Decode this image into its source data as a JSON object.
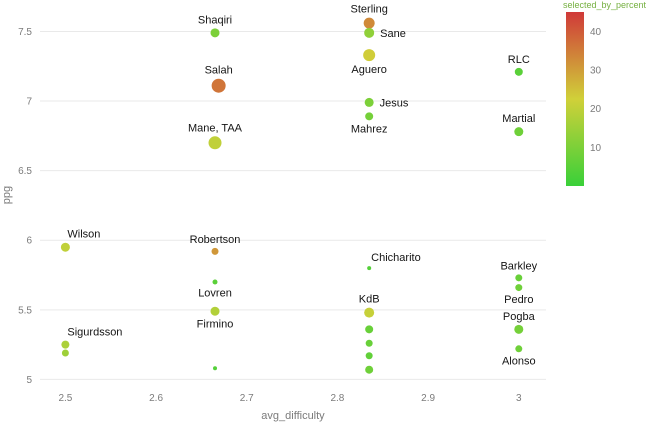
{
  "chart_data": {
    "type": "scatter",
    "title": "",
    "xlabel": "avg_difficulty",
    "ylabel": "ppg",
    "xlim": [
      2.472,
      3.03
    ],
    "ylim": [
      4.96,
      7.69
    ],
    "x_tick_values": [
      2.5,
      2.6,
      2.7,
      2.8,
      2.9,
      3.0
    ],
    "x_ticks": [
      "2.5",
      "2.6",
      "2.7",
      "2.8",
      "2.9",
      "3"
    ],
    "y_tick_values": [
      5,
      5.5,
      6,
      6.5,
      7,
      7.5
    ],
    "y_ticks": [
      "5",
      "5.5",
      "6",
      "6.5",
      "7",
      "7.5"
    ],
    "grid": "horizontal",
    "grid_color": "#e9e9e9",
    "label_color": "#141414",
    "tick_color": "#7b7b7b",
    "colorbar": {
      "title": "selected_by_percent",
      "title_color": "#76b041",
      "min": 0,
      "max": 45,
      "tick_values": [
        40,
        30,
        20,
        10
      ],
      "tick_labels": [
        "40",
        "30",
        "20",
        "10"
      ],
      "low_color_hint": "#34cc34",
      "high_color_hint": "#d42b2b"
    },
    "points": [
      {
        "label": "Shaqiri",
        "x": 2.665,
        "y": 7.49,
        "v": 10,
        "r": 4.5,
        "label_pos": "above"
      },
      {
        "label": "Sterling",
        "x": 2.835,
        "y": 7.56,
        "v": 33,
        "r": 5.5,
        "label_pos": "above"
      },
      {
        "label": "Sane",
        "x": 2.835,
        "y": 7.49,
        "v": 13,
        "r": 5,
        "label_pos": "right"
      },
      {
        "label": "Aguero",
        "x": 2.835,
        "y": 7.33,
        "v": 23,
        "r": 6,
        "label_pos": "below"
      },
      {
        "label": "RLC",
        "x": 3.0,
        "y": 7.21,
        "v": 5,
        "r": 4,
        "label_pos": "above"
      },
      {
        "label": "Salah",
        "x": 2.669,
        "y": 7.11,
        "v": 36,
        "r": 7,
        "label_pos": "above"
      },
      {
        "label": "Jesus",
        "x": 2.835,
        "y": 6.99,
        "v": 10,
        "r": 4.5,
        "label_pos": "right"
      },
      {
        "label": "Mahrez",
        "x": 2.835,
        "y": 6.89,
        "v": 9,
        "r": 4,
        "label_pos": "below"
      },
      {
        "label": "Martial",
        "x": 3.0,
        "y": 6.78,
        "v": 8,
        "r": 4.5,
        "label_pos": "above"
      },
      {
        "label": "Mane, TAA",
        "x": 2.665,
        "y": 6.7,
        "v": 20,
        "r": 6.5,
        "label_pos": "above"
      },
      {
        "label": "Wilson",
        "x": 2.5,
        "y": 5.95,
        "v": 20,
        "r": 4.5,
        "label_pos": "above-right"
      },
      {
        "label": "Robertson",
        "x": 2.665,
        "y": 5.92,
        "v": 31,
        "r": 3.5,
        "label_pos": "above"
      },
      {
        "label": "Chicharito",
        "x": 2.835,
        "y": 5.8,
        "v": 4,
        "r": 2,
        "label_pos": "above-right"
      },
      {
        "label": "Barkley",
        "x": 3.0,
        "y": 5.73,
        "v": 7,
        "r": 3.5,
        "label_pos": "above"
      },
      {
        "label": "Lovren",
        "x": 2.665,
        "y": 5.7,
        "v": 5,
        "r": 2.5,
        "label_pos": "below"
      },
      {
        "label": "Pedro",
        "x": 3.0,
        "y": 5.66,
        "v": 8,
        "r": 3.5,
        "label_pos": "below"
      },
      {
        "label": "KdB",
        "x": 2.835,
        "y": 5.48,
        "v": 21,
        "r": 5,
        "label_pos": "above"
      },
      {
        "label": "Firmino",
        "x": 2.665,
        "y": 5.49,
        "v": 18,
        "r": 4.5,
        "label_pos": "below"
      },
      {
        "label": "Pogba",
        "x": 3.0,
        "y": 5.36,
        "v": 9,
        "r": 4.5,
        "label_pos": "above"
      },
      {
        "label": "Sigurdsson",
        "x": 2.5,
        "y": 5.25,
        "v": 17,
        "r": 4,
        "label_pos": "above-right"
      },
      {
        "label": "Alonso",
        "x": 3.0,
        "y": 5.22,
        "v": 8,
        "r": 3.5,
        "label_pos": "below"
      },
      {
        "label": "",
        "x": 2.835,
        "y": 5.36,
        "v": 7,
        "r": 4
      },
      {
        "label": "",
        "x": 2.5,
        "y": 5.19,
        "v": 15,
        "r": 3.5
      },
      {
        "label": "",
        "x": 2.835,
        "y": 5.26,
        "v": 7,
        "r": 3.5
      },
      {
        "label": "",
        "x": 2.835,
        "y": 5.17,
        "v": 6,
        "r": 3.5
      },
      {
        "label": "",
        "x": 2.835,
        "y": 5.07,
        "v": 8,
        "r": 4
      },
      {
        "label": "",
        "x": 2.665,
        "y": 5.08,
        "v": 4,
        "r": 2
      }
    ]
  }
}
